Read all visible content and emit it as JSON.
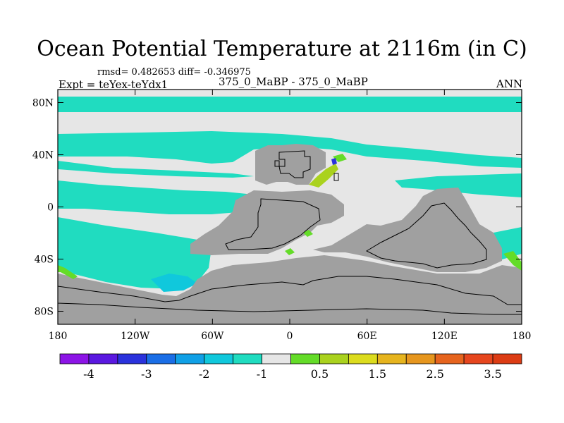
{
  "title": "Ocean Potential Temperature at 2116m (in C)",
  "stats_text": "rmsd= 0.482653  diff= -0.346975",
  "expt_text": "Expt = teYex-teYdx1",
  "cases_text": "375_0_MaBP - 375_0_MaBP",
  "season_text": "ANN",
  "y_ticks": [
    {
      "label": "80N",
      "lat": 80
    },
    {
      "label": "40N",
      "lat": 40
    },
    {
      "label": "0",
      "lat": 0
    },
    {
      "label": "40S",
      "lat": -40
    },
    {
      "label": "80S",
      "lat": -80
    }
  ],
  "x_ticks": [
    {
      "label": "180",
      "lon": -180
    },
    {
      "label": "120W",
      "lon": -120
    },
    {
      "label": "60W",
      "lon": -60
    },
    {
      "label": "0",
      "lon": 0
    },
    {
      "label": "60E",
      "lon": 60
    },
    {
      "label": "120E",
      "lon": 120
    },
    {
      "label": "180",
      "lon": 180
    }
  ],
  "colors": {
    "land": "#a0a0a0",
    "near_zero": "#e6e6e6",
    "minus_half": "#20dcc0",
    "minus_one": "#10c8dc",
    "minus_two": "#10a0e6",
    "plus_half": "#64dc28",
    "plus_one": "#aad21e"
  },
  "colorbar": {
    "swatches": [
      "#8c14e6",
      "#5a18e0",
      "#2a32dc",
      "#1a6ee6",
      "#10a0e6",
      "#10c8dc",
      "#20dcc0",
      "#e6e6e6",
      "#64dc28",
      "#aad21e",
      "#dcdc1e",
      "#e6b41e",
      "#e6961e",
      "#e6641e",
      "#e6461e",
      "#dc3c14"
    ],
    "labels": [
      "-4",
      "-3",
      "-2",
      "-1",
      "0.5",
      "1.5",
      "2.5",
      "3.5"
    ]
  },
  "chart_data": {
    "type": "heatmap",
    "title": "Ocean Potential Temperature at 2116m (in C)",
    "variable": "Ocean potential temperature difference at 2116 m",
    "units": "C",
    "xlim": [
      -180,
      180
    ],
    "ylim": [
      -90,
      90
    ],
    "contour_levels": [
      -4.5,
      -4,
      -3.5,
      -3,
      -2.5,
      -2,
      -1.5,
      -1,
      -0.5,
      0.5,
      1,
      1.5,
      2,
      2.5,
      3,
      3.5,
      4
    ],
    "rmsd": 0.482653,
    "diff": -0.346975,
    "regions": [
      {
        "name": "arctic-band",
        "value_class": "-1 to -0.5"
      },
      {
        "name": "northern-subpolar-band",
        "value_class": "-1 to -0.5"
      },
      {
        "name": "tropical-band",
        "value_class": "-1 to -0.5"
      },
      {
        "name": "southern-ocean-band",
        "value_class": "-1 to -0.5"
      },
      {
        "name": "weddell-patch",
        "value_class": "-1.5 to -1"
      },
      {
        "name": "dark-blue-spot",
        "value_class": "-3 to -2.5"
      },
      {
        "name": "green-patches",
        "value_class": "0.5 to 1.5"
      },
      {
        "name": "interior-ocean",
        "value_class": "-0.5 to 0.5"
      }
    ]
  }
}
